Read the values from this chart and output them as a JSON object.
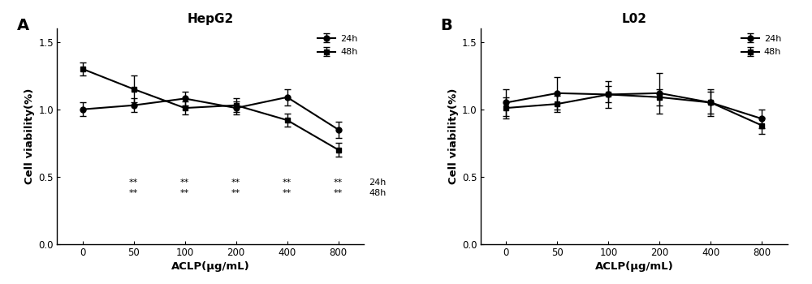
{
  "panel_A": {
    "title": "HepG2",
    "xlabel": "ACLP(μg/mL)",
    "ylabel": "Cell viability(%)",
    "x": [
      0,
      50,
      100,
      200,
      400,
      800
    ],
    "line_24h": [
      1.0,
      1.03,
      1.08,
      1.01,
      1.09,
      0.85
    ],
    "err_24h": [
      0.05,
      0.05,
      0.05,
      0.05,
      0.06,
      0.06
    ],
    "line_48h": [
      1.3,
      1.15,
      1.01,
      1.03,
      0.92,
      0.7
    ],
    "err_48h": [
      0.05,
      0.1,
      0.05,
      0.05,
      0.05,
      0.05
    ],
    "ylim": [
      0.0,
      1.6
    ],
    "yticks": [
      0.0,
      0.5,
      1.0,
      1.5
    ],
    "sig_asterisk": "**"
  },
  "panel_B": {
    "title": "L02",
    "xlabel": "ACLP(μg/mL)",
    "ylabel": "Cell viability(%)",
    "x": [
      0,
      50,
      100,
      200,
      400,
      800
    ],
    "line_24h": [
      1.05,
      1.12,
      1.11,
      1.12,
      1.05,
      0.93
    ],
    "err_24h": [
      0.1,
      0.12,
      0.1,
      0.15,
      0.1,
      0.07
    ],
    "line_48h": [
      1.01,
      1.04,
      1.11,
      1.09,
      1.05,
      0.88
    ],
    "err_48h": [
      0.08,
      0.06,
      0.06,
      0.06,
      0.08,
      0.06
    ],
    "ylim": [
      0.0,
      1.6
    ],
    "yticks": [
      0.0,
      0.5,
      1.0,
      1.5
    ]
  },
  "color": "#000000",
  "linewidth": 1.5,
  "markersize": 5,
  "capsize": 3,
  "elinewidth": 1.0,
  "label_A": "A",
  "label_B": "B"
}
